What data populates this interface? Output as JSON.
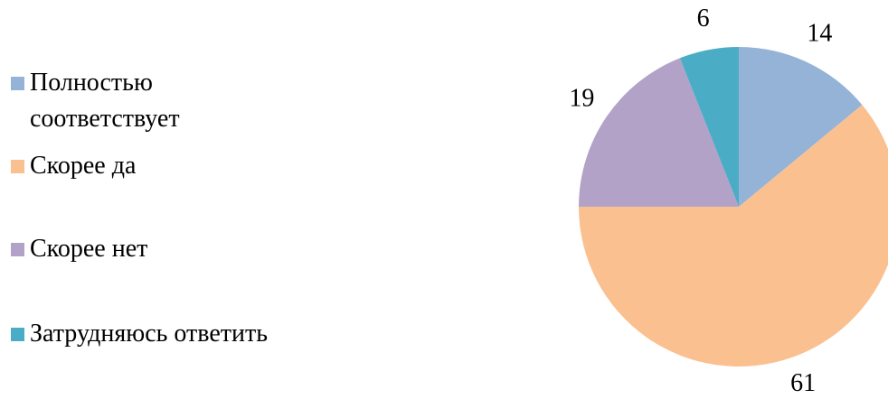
{
  "chart_data": {
    "type": "pie",
    "categories": [
      "Полностью соответствует",
      "Скорее да",
      "Скорее нет",
      "Затрудняюсь ответить"
    ],
    "values": [
      14,
      61,
      19,
      6
    ],
    "colors": [
      "#95b3d7",
      "#fac090",
      "#b3a2c7",
      "#4bacc6"
    ],
    "legend": "left"
  }
}
